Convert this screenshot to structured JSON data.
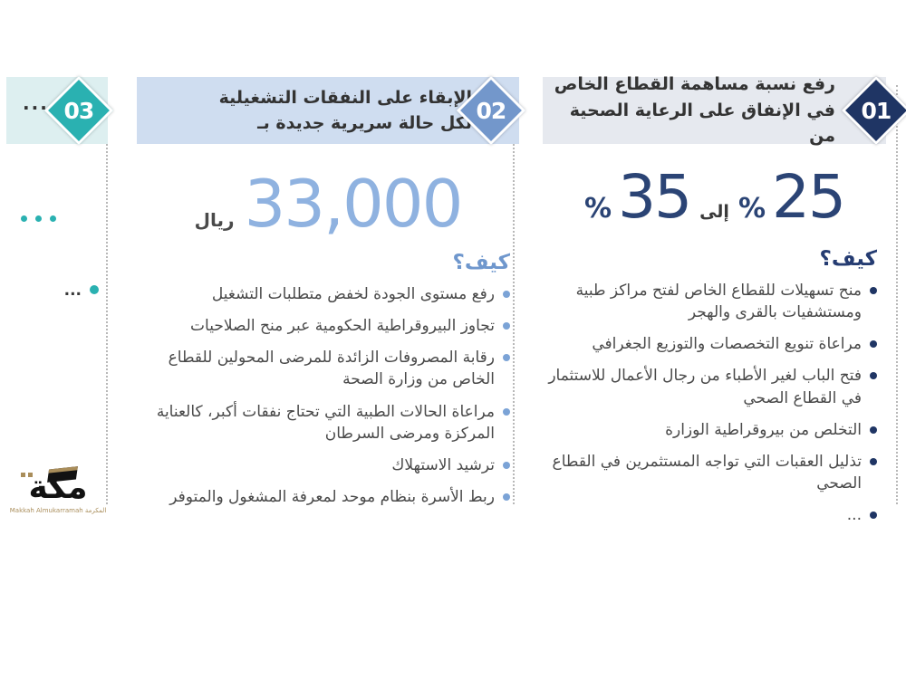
{
  "sections": [
    {
      "number": "01",
      "title_line1": "رفع نسبة مساهمة القطاع الخاص",
      "title_line2": "في الإنفاق على الرعاية الصحية من",
      "stat": {
        "from": "25",
        "to": "35",
        "percent": "%",
        "connector": "إلى"
      },
      "how_label": "كيف؟",
      "bullets": [
        "منح تسهيلات للقطاع الخاص لفتح مراكز طبية ومستشفيات بالقرى والهجر",
        "مراعاة تنويع التخصصات والتوزيع الجغرافي",
        "فتح الباب لغير الأطباء من رجال الأعمال للاستثمار في القطاع الصحي",
        "التخلص من بيروقراطية الوزارة",
        "تذليل العقبات التي تواجه المستثمرين في القطاع الصحي",
        "..."
      ],
      "colors": {
        "diamond": "#1f3564",
        "band": "#e6e9ef",
        "stat": "#2b4475"
      }
    },
    {
      "number": "02",
      "title_line1": "الإبقاء على النفقات التشغيلية",
      "title_line2": "لكل حالة سريرية جديدة بـ",
      "stat": {
        "value": "33,000",
        "unit": "ريال"
      },
      "how_label": "كيف؟",
      "bullets": [
        "رفع مستوى الجودة لخفض متطلبات التشغيل",
        "تجاوز البيروقراطية الحكومية عبر منح الصلاحيات",
        "رقابة المصروفات الزائدة للمرضى المحولين للقطاع الخاص من وزارة الصحة",
        "مراعاة الحالات الطبية التي تحتاج نفقات أكبر، كالعناية المركزة ومرضى السرطان",
        "ترشيد الاستهلاك",
        "ربط الأسرة بنظام موحد لمعرفة المشغول والمتوفر"
      ],
      "colors": {
        "diamond": "#7397cb",
        "band": "#cfddf0",
        "stat": "#8fb2e0"
      }
    },
    {
      "number": "03",
      "title": "...",
      "stat_placeholder": "...",
      "bullets": [
        "..."
      ],
      "colors": {
        "diamond": "#2ab1b1",
        "band": "#ddeff0"
      }
    }
  ],
  "logo": {
    "wordmark": "مكة",
    "caption": "Makkah Almukarramah المكرمة"
  }
}
